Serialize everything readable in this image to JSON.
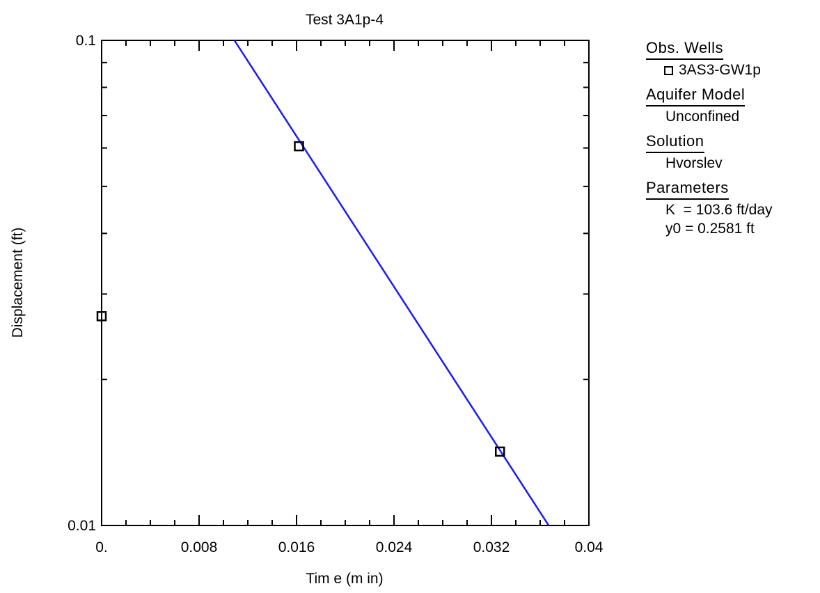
{
  "chart_data": {
    "type": "scatter",
    "title": "Test 3A1p-4",
    "xlabel": "Tim e (m in)",
    "ylabel": "Displacement (ft)",
    "x_scale": "linear",
    "y_scale": "log",
    "xlim": [
      0,
      0.04
    ],
    "ylim": [
      0.01,
      0.1
    ],
    "x_tick_values": [
      0,
      0.008,
      0.016,
      0.024,
      0.032,
      0.04
    ],
    "x_tick_labels": [
      "0.",
      "0.008",
      "0.016",
      "0.024",
      "0.032",
      "0.04"
    ],
    "y_tick_values": [
      0.01,
      0.1
    ],
    "y_tick_labels": [
      "0.01",
      "0.1"
    ],
    "grid": false,
    "series": [
      {
        "type": "scatter",
        "marker": "square",
        "color": "#000000",
        "points": [
          {
            "x": 0.0,
            "y": 0.027
          },
          {
            "x": 0.0162,
            "y": 0.0605
          },
          {
            "x": 0.0327,
            "y": 0.0142
          }
        ]
      },
      {
        "type": "line",
        "color": "#1a1aff",
        "points": [
          {
            "x": 0.0109,
            "y": 0.1
          },
          {
            "x": 0.0367,
            "y": 0.01
          }
        ]
      }
    ]
  },
  "legend": {
    "placement": "right",
    "sections": [
      {
        "header": "Obs. Wells",
        "rows": [
          "3AS3-GW1p"
        ],
        "marker": true
      },
      {
        "header": "Aquifer Model",
        "rows": [
          "Unconfined"
        ]
      },
      {
        "header": "Solution",
        "rows": [
          "Hvorslev"
        ]
      },
      {
        "header": "Parameters",
        "rows": [
          "K  = 103.6 ft/day",
          "y0 = 0.2581 ft"
        ]
      }
    ]
  }
}
